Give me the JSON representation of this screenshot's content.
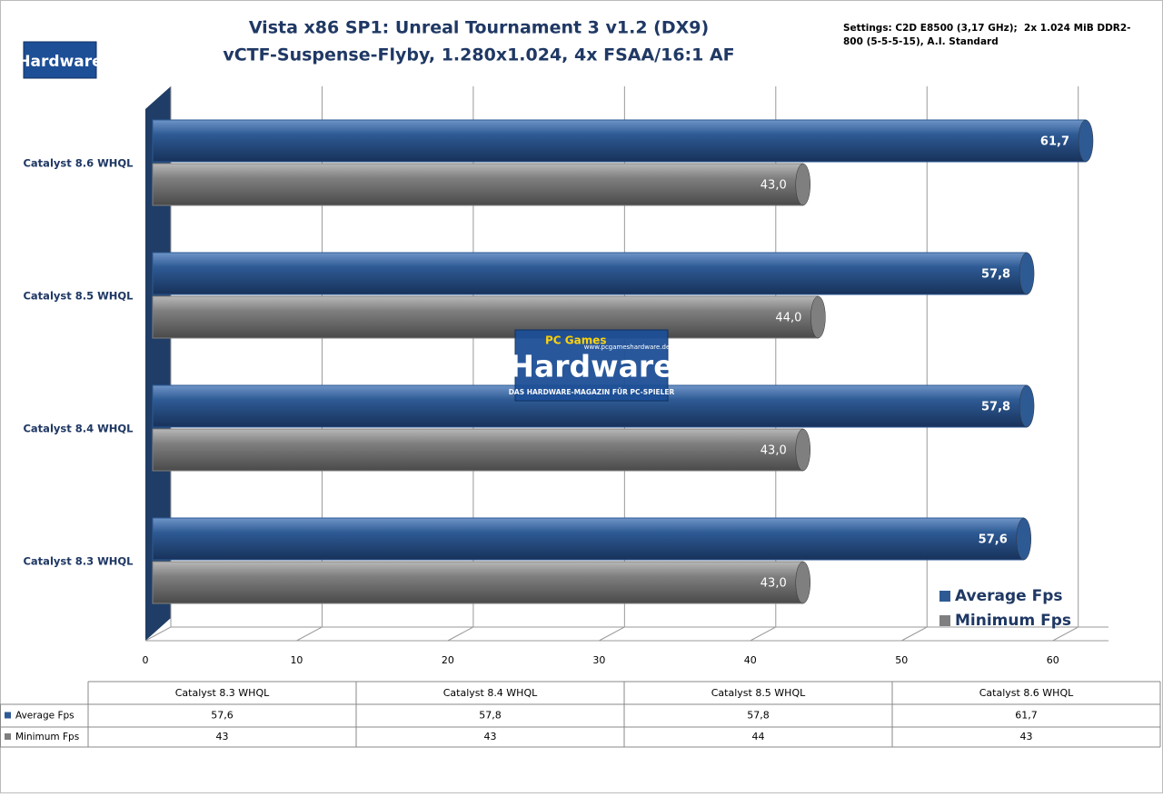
{
  "branding": {
    "logo_small": "Hardware",
    "logo_big": "Hardware",
    "logo_top": "PC Games",
    "url": "www.pcgameshardware.de",
    "tagline": "DAS HARDWARE-MAGAZIN FÜR PC-SPIELER"
  },
  "chart_data": {
    "type": "hbar",
    "title": "Vista x86 SP1: Unreal Tournament 3 v1.2 (DX9)",
    "subtitle": "vCTF-Suspense-Flyby, 1.280x1.024, 4x FSAA/16:1 AF",
    "annotation": "Settings: C2D E8500 (3,17 GHz);  2x 1.024 MiB DDR2-800 (5-5-5-15), A.I. Standard",
    "categories": [
      "Catalyst 8.3 WHQL",
      "Catalyst 8.4 WHQL",
      "Catalyst 8.5 WHQL",
      "Catalyst 8.6 WHQL"
    ],
    "series": [
      {
        "name": "Average Fps",
        "color": "#2e5a94",
        "values": [
          57.6,
          57.8,
          57.8,
          61.7
        ],
        "value_labels": [
          "57,6",
          "57,8",
          "57,8",
          "61,7"
        ]
      },
      {
        "name": "Minimum Fps",
        "color": "#7f7f7f",
        "values": [
          43,
          43,
          44,
          43
        ],
        "value_labels": [
          "43,0",
          "43,0",
          "44,0",
          "43,0"
        ]
      }
    ],
    "xlim": [
      0,
      62
    ],
    "xticks": [
      0,
      10,
      20,
      30,
      40,
      50,
      60
    ],
    "grid": true,
    "legend": "lower right"
  }
}
